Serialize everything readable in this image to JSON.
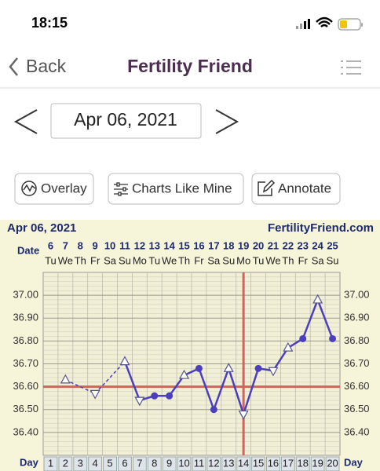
{
  "status_bar": {
    "time": "18:15"
  },
  "nav": {
    "back": "Back",
    "title": "Fertility Friend"
  },
  "date_picker": {
    "date": "Apr 06, 2021"
  },
  "buttons": [
    "Overlay",
    "Charts Like Mine",
    "Annotate"
  ],
  "chart": {
    "type": "line",
    "header_date": "Apr 06, 2021",
    "site": "FertilityFriend.com",
    "date_label": "Date",
    "day_label": "Day",
    "dates": [
      "6",
      "7",
      "8",
      "9",
      "10",
      "11",
      "12",
      "13",
      "14",
      "15",
      "16",
      "17",
      "18",
      "19",
      "20",
      "21",
      "22",
      "23",
      "24",
      "25"
    ],
    "weekdays": [
      "Tu",
      "We",
      "Th",
      "Fr",
      "Sa",
      "Su",
      "Mo",
      "Tu",
      "We",
      "Th",
      "Fr",
      "Sa",
      "Su",
      "Mo",
      "Tu",
      "We",
      "Th",
      "Fr",
      "Sa",
      "Su"
    ],
    "days": [
      1,
      2,
      3,
      4,
      5,
      6,
      7,
      8,
      9,
      10,
      11,
      12,
      13,
      14,
      15,
      16,
      17,
      18,
      19,
      20
    ],
    "temps": [
      null,
      36.63,
      null,
      36.57,
      null,
      36.71,
      36.54,
      36.56,
      36.56,
      36.65,
      36.68,
      36.5,
      36.68,
      36.48,
      36.68,
      36.67,
      36.77,
      36.81,
      36.98,
      36.81
    ],
    "markers": [
      null,
      "up",
      null,
      "down",
      null,
      "up",
      "down",
      "filled",
      "filled",
      "up",
      "filled",
      "filled",
      "up",
      "down",
      "filled",
      "down",
      "up",
      "filled",
      "up",
      "filled"
    ],
    "line_color": "#4b3fbf",
    "coverline": 36.6,
    "ovulation_day": 14,
    "reference_color": "#d9605c",
    "ylim": [
      36.3,
      37.1
    ],
    "yticks": [
      {
        "value": 37.0,
        "label": "37.00"
      },
      {
        "value": 36.9,
        "label": "36.90"
      },
      {
        "value": 36.8,
        "label": "36.80"
      },
      {
        "value": 36.7,
        "label": "36.70"
      },
      {
        "value": 36.6,
        "label": "36.60"
      },
      {
        "value": 36.5,
        "label": "36.50"
      },
      {
        "value": 36.4,
        "label": "36.40"
      }
    ]
  }
}
